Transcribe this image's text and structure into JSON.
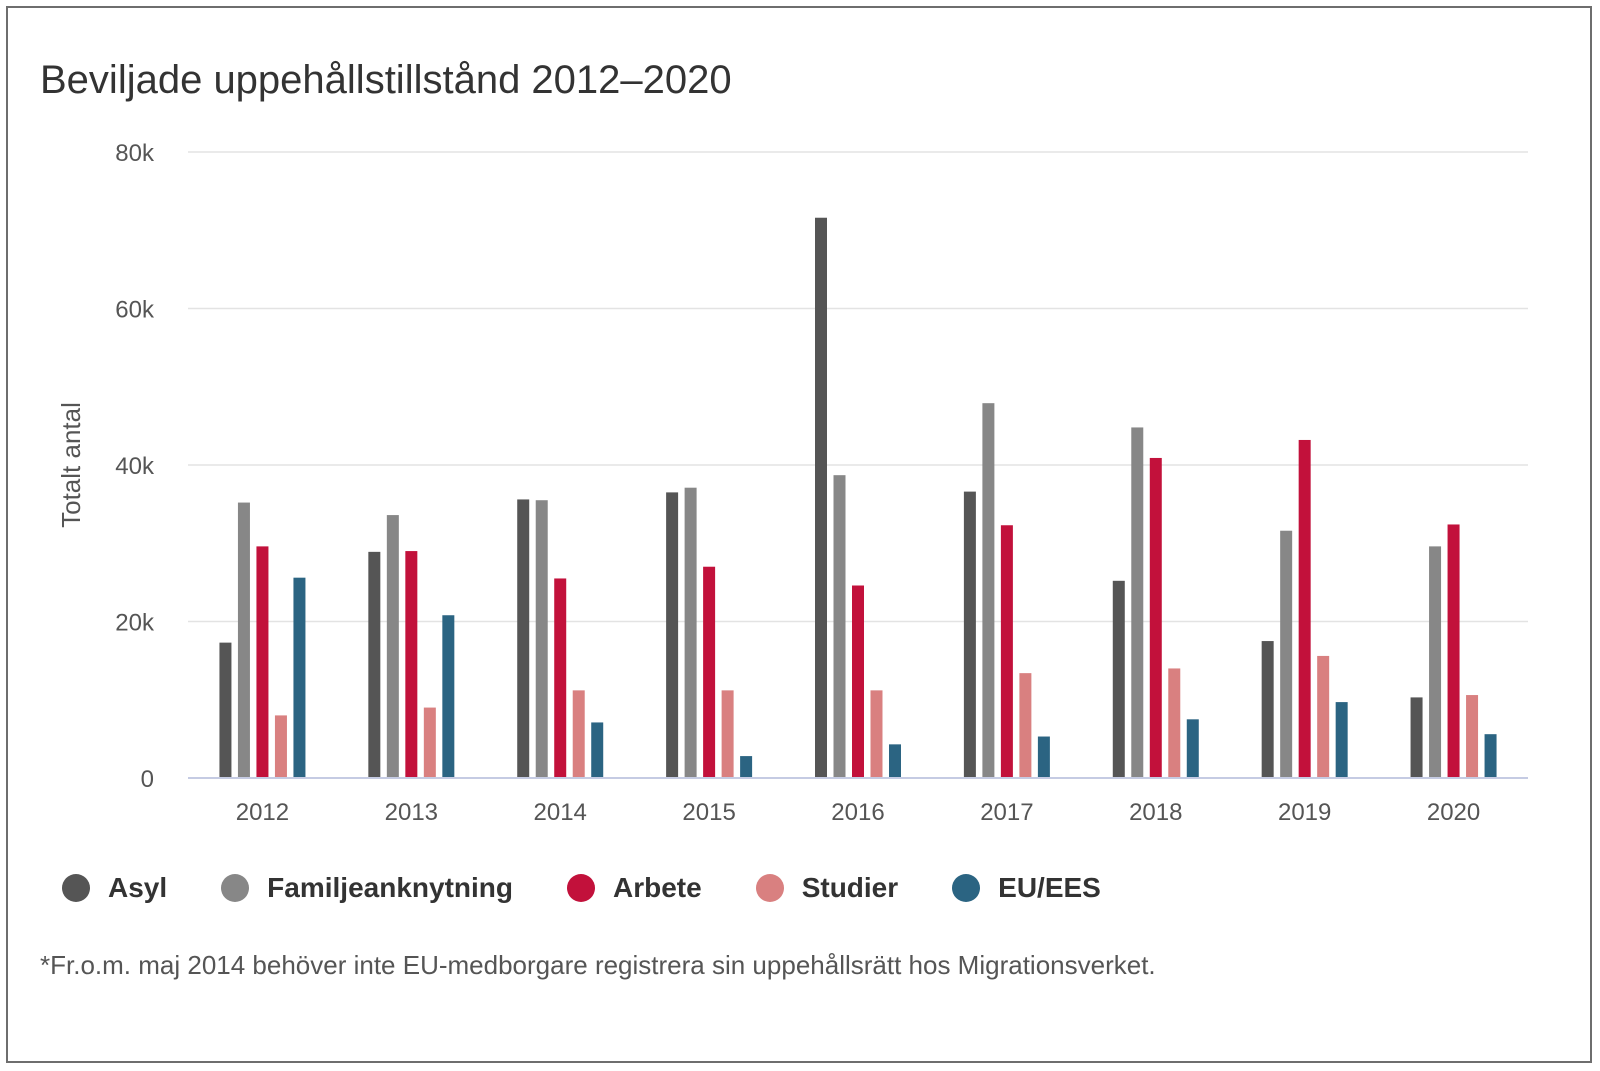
{
  "chart_data": {
    "type": "bar",
    "title": "Beviljade uppehållstillstånd 2012–2020",
    "xlabel": "",
    "ylabel": "Totalt antal",
    "ylim": [
      0,
      80000
    ],
    "yticks": [
      0,
      20000,
      40000,
      60000,
      80000
    ],
    "ytick_labels": [
      "0",
      "20k",
      "40k",
      "60k",
      "80k"
    ],
    "grid": true,
    "legend_position": "bottom-left",
    "categories": [
      "2012",
      "2013",
      "2014",
      "2015",
      "2016",
      "2017",
      "2018",
      "2019",
      "2020"
    ],
    "series": [
      {
        "name": "Asyl",
        "color": "#555555",
        "values": [
          17300,
          28900,
          35600,
          36500,
          71600,
          36600,
          25200,
          17500,
          10300
        ]
      },
      {
        "name": "Familjeanknytning",
        "color": "#878787",
        "values": [
          35200,
          33600,
          35500,
          37100,
          38700,
          47900,
          44800,
          31600,
          29600
        ]
      },
      {
        "name": "Arbete",
        "color": "#c2113b",
        "values": [
          29600,
          29000,
          25500,
          27000,
          24600,
          32300,
          40900,
          43200,
          32400
        ]
      },
      {
        "name": "Studier",
        "color": "#d98080",
        "values": [
          8000,
          9000,
          11200,
          11200,
          11200,
          13400,
          14000,
          15600,
          10600
        ]
      },
      {
        "name": "EU/EES",
        "color": "#2b6482",
        "values": [
          25600,
          20800,
          7100,
          2800,
          4300,
          5300,
          7500,
          9700,
          5600
        ]
      }
    ],
    "footnote": "*Fr.o.m. maj 2014 behöver inte EU-medborgare registrera sin uppehållsrätt hos Migrationsverket."
  }
}
